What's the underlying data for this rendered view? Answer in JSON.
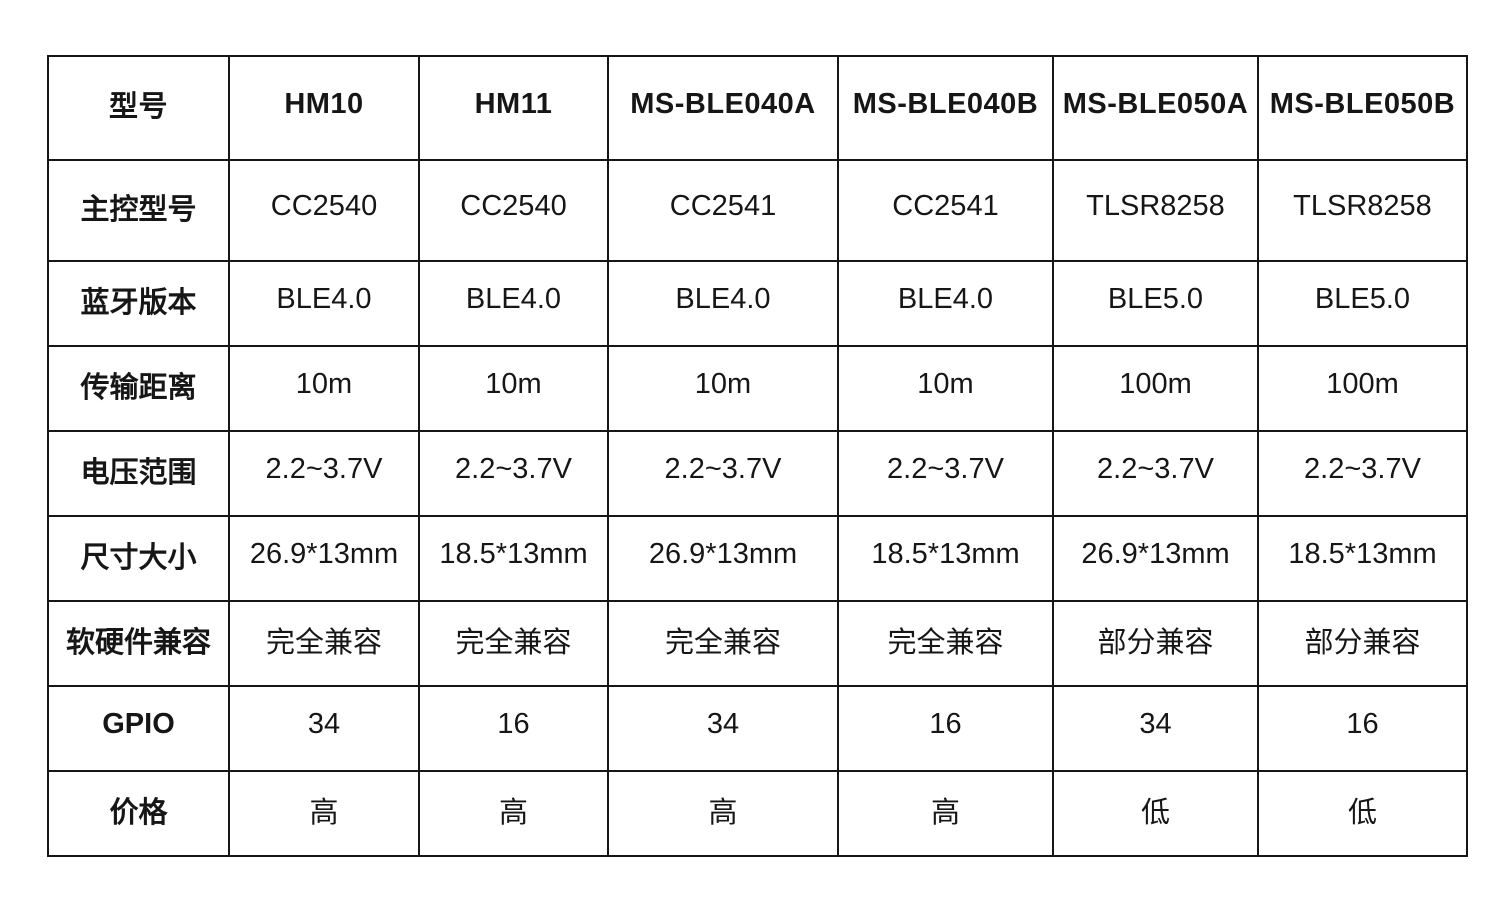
{
  "table": {
    "header_row": [
      "型号",
      "HM10",
      "HM11",
      "MS-BLE040A",
      "MS-BLE040B",
      "MS-BLE050A",
      "MS-BLE050B"
    ],
    "rows": [
      {
        "label": "主控型号",
        "values": [
          "CC2540",
          "CC2540",
          "CC2541",
          "CC2541",
          "TLSR8258",
          "TLSR8258"
        ]
      },
      {
        "label": "蓝牙版本",
        "values": [
          "BLE4.0",
          "BLE4.0",
          "BLE4.0",
          "BLE4.0",
          "BLE5.0",
          "BLE5.0"
        ]
      },
      {
        "label": "传输距离",
        "values": [
          "10m",
          "10m",
          "10m",
          "10m",
          "100m",
          "100m"
        ]
      },
      {
        "label": "电压范围",
        "values": [
          "2.2~3.7V",
          "2.2~3.7V",
          "2.2~3.7V",
          "2.2~3.7V",
          "2.2~3.7V",
          "2.2~3.7V"
        ]
      },
      {
        "label": "尺寸大小",
        "values": [
          "26.9*13mm",
          "18.5*13mm",
          "26.9*13mm",
          "18.5*13mm",
          "26.9*13mm",
          "18.5*13mm"
        ]
      },
      {
        "label": "软硬件兼容",
        "values": [
          "完全兼容",
          "完全兼容",
          "完全兼容",
          "完全兼容",
          "部分兼容",
          "部分兼容"
        ]
      },
      {
        "label": "GPIO",
        "values": [
          "34",
          "16",
          "34",
          "16",
          "34",
          "16"
        ]
      },
      {
        "label": "价格",
        "values": [
          "高",
          "高",
          "高",
          "高",
          "低",
          "低"
        ]
      }
    ]
  },
  "colors": {
    "border": "#161616",
    "text": "#161616",
    "background": "#ffffff"
  }
}
